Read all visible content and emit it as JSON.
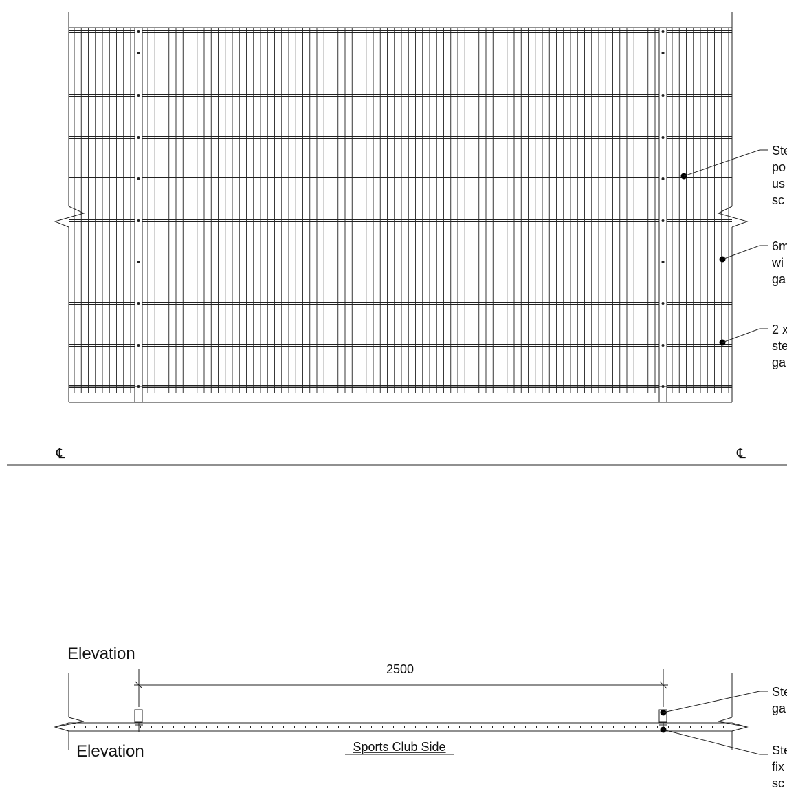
{
  "elevation": {
    "centerline_symbol": "℄",
    "callouts": [
      {
        "lines": [
          "Ste",
          "po",
          "us",
          "sc"
        ]
      },
      {
        "lines": [
          "6m",
          "wi",
          "ga"
        ]
      },
      {
        "lines": [
          "2 x",
          "ste",
          "ga"
        ]
      }
    ]
  },
  "plan": {
    "heading": "Elevation",
    "sub_heading": "Elevation",
    "dimension": "2500",
    "side_label": "Sports Club Side",
    "callouts": [
      {
        "lines": [
          "Ste",
          "ga"
        ]
      },
      {
        "lines": [
          "Ste",
          "fix",
          "sc"
        ]
      }
    ]
  },
  "colors": {
    "line": "#222222",
    "background": "#ffffff"
  }
}
